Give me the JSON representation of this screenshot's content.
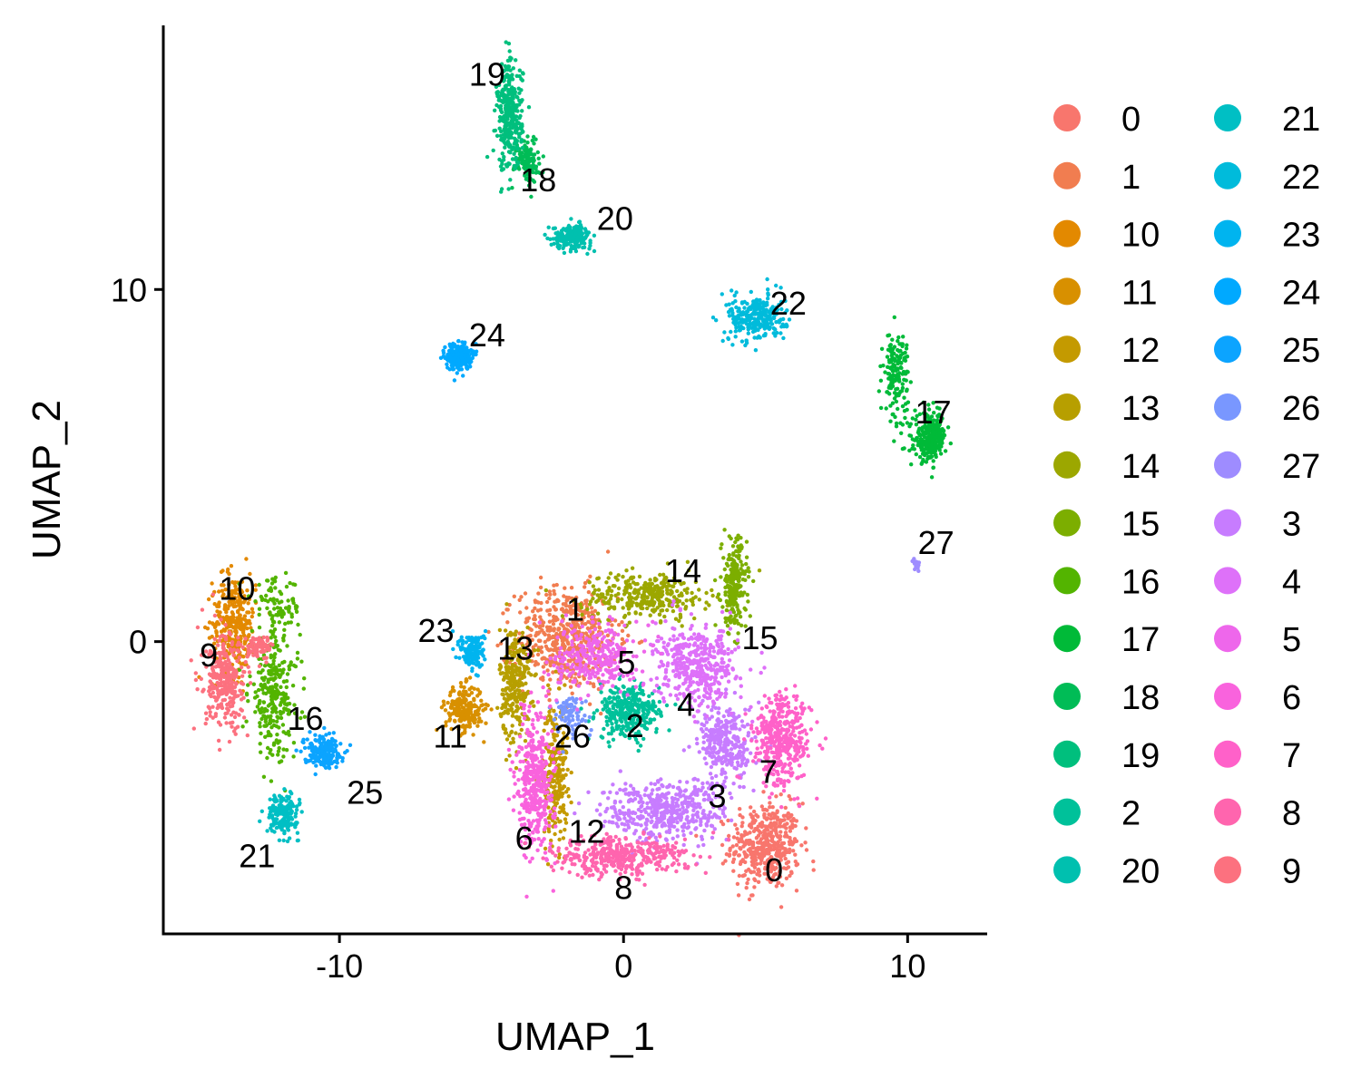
{
  "chart_data": {
    "type": "scatter",
    "xlabel": "UMAP_1",
    "ylabel": "UMAP_2",
    "xlim": [
      -16.2,
      12.8
    ],
    "ylim": [
      -8.3,
      17.5
    ],
    "x_ticks": [
      -10,
      0,
      10
    ],
    "y_ticks": [
      0,
      10
    ],
    "x_tick_labels": [
      "-10",
      "0",
      "10"
    ],
    "y_tick_labels": [
      "0",
      "10"
    ],
    "grid": false,
    "legend_position": "right",
    "legend_columns": 2,
    "clusters": [
      {
        "name": "0",
        "color": "#F8766D",
        "label_pos": [
          5.3,
          -6.5
        ],
        "blobs": [
          [
            5.0,
            -5.8,
            1.1,
            1.1,
            450
          ]
        ]
      },
      {
        "name": "1",
        "color": "#F17D50",
        "label_pos": [
          -1.7,
          0.9
        ],
        "blobs": [
          [
            -2.0,
            0.1,
            1.6,
            1.3,
            550
          ]
        ]
      },
      {
        "name": "10",
        "color": "#E38900",
        "label_pos": [
          -13.6,
          1.5
        ],
        "blobs": [
          [
            -13.7,
            0.5,
            0.7,
            1.3,
            320
          ]
        ]
      },
      {
        "name": "11",
        "color": "#D89000",
        "label_pos": [
          -6.1,
          -2.7
        ],
        "blobs": [
          [
            -5.6,
            -1.9,
            0.6,
            0.6,
            220
          ]
        ]
      },
      {
        "name": "12",
        "color": "#C49A00",
        "label_pos": [
          -1.3,
          -5.4
        ],
        "blobs": [
          [
            -2.4,
            -3.7,
            0.4,
            1.8,
            250
          ]
        ]
      },
      {
        "name": "13",
        "color": "#B79F00",
        "label_pos": [
          -3.8,
          -0.2
        ],
        "blobs": [
          [
            -3.8,
            -1.2,
            0.5,
            1.5,
            280
          ]
        ]
      },
      {
        "name": "14",
        "color": "#9CA700",
        "label_pos": [
          2.1,
          2.0
        ],
        "blobs": [
          [
            0.8,
            1.3,
            2.0,
            0.6,
            320
          ]
        ]
      },
      {
        "name": "15",
        "color": "#7CAE00",
        "label_pos": [
          4.8,
          0.1
        ],
        "blobs": [
          [
            3.9,
            1.6,
            0.4,
            1.2,
            220
          ]
        ]
      },
      {
        "name": "16",
        "color": "#53B400",
        "label_pos": [
          -11.2,
          -2.2
        ],
        "blobs": [
          [
            -12.3,
            -1.5,
            0.8,
            1.6,
            280
          ],
          [
            -12.2,
            1.0,
            0.8,
            0.7,
            80
          ]
        ]
      },
      {
        "name": "17",
        "color": "#00BA38",
        "label_pos": [
          10.9,
          6.5
        ],
        "blobs": [
          [
            10.8,
            5.8,
            0.5,
            0.6,
            280
          ],
          [
            9.6,
            7.6,
            0.4,
            1.1,
            160
          ]
        ]
      },
      {
        "name": "18",
        "color": "#00BC56",
        "label_pos": [
          -3.0,
          13.1
        ],
        "blobs": [
          [
            -3.4,
            13.7,
            0.4,
            0.6,
            120
          ]
        ]
      },
      {
        "name": "19",
        "color": "#00BF7D",
        "label_pos": [
          -4.8,
          16.1
        ],
        "blobs": [
          [
            -4.0,
            14.9,
            0.4,
            1.4,
            340
          ]
        ]
      },
      {
        "name": "2",
        "color": "#00C19A",
        "label_pos": [
          0.4,
          -2.4
        ],
        "blobs": [
          [
            0.2,
            -2.0,
            1.0,
            0.7,
            320
          ]
        ]
      },
      {
        "name": "20",
        "color": "#00C0AF",
        "label_pos": [
          -0.3,
          12.0
        ],
        "blobs": [
          [
            -1.8,
            11.5,
            0.6,
            0.3,
            200
          ]
        ]
      },
      {
        "name": "21",
        "color": "#00BFC4",
        "label_pos": [
          -12.9,
          -6.1
        ],
        "blobs": [
          [
            -12.0,
            -4.9,
            0.5,
            0.5,
            180
          ]
        ]
      },
      {
        "name": "22",
        "color": "#00BBDB",
        "label_pos": [
          5.8,
          9.6
        ],
        "blobs": [
          [
            4.7,
            9.2,
            0.9,
            0.6,
            280
          ]
        ]
      },
      {
        "name": "23",
        "color": "#00B4EF",
        "label_pos": [
          -6.6,
          0.3
        ],
        "blobs": [
          [
            -5.3,
            -0.3,
            0.4,
            0.5,
            140
          ]
        ]
      },
      {
        "name": "24",
        "color": "#00A9FF",
        "label_pos": [
          -4.8,
          8.7
        ],
        "blobs": [
          [
            -5.8,
            8.1,
            0.4,
            0.35,
            220
          ]
        ]
      },
      {
        "name": "25",
        "color": "#0CA4FF",
        "label_pos": [
          -9.1,
          -4.3
        ],
        "blobs": [
          [
            -10.6,
            -3.1,
            0.6,
            0.4,
            200
          ]
        ]
      },
      {
        "name": "26",
        "color": "#7997FF",
        "label_pos": [
          -1.8,
          -2.7
        ],
        "blobs": [
          [
            -1.9,
            -2.1,
            0.6,
            0.6,
            80
          ]
        ]
      },
      {
        "name": "27",
        "color": "#9E8CFF",
        "label_pos": [
          11.0,
          2.8
        ],
        "blobs": [
          [
            10.3,
            2.2,
            0.1,
            0.2,
            20
          ]
        ]
      },
      {
        "name": "3",
        "color": "#C77CFF",
        "label_pos": [
          3.3,
          -4.4
        ],
        "blobs": [
          [
            1.5,
            -4.8,
            2.0,
            0.8,
            450
          ],
          [
            3.6,
            -2.9,
            0.9,
            1.0,
            300
          ]
        ]
      },
      {
        "name": "4",
        "color": "#DE71F9",
        "label_pos": [
          2.2,
          -1.8
        ],
        "blobs": [
          [
            2.6,
            -0.7,
            1.3,
            1.0,
            420
          ]
        ]
      },
      {
        "name": "5",
        "color": "#EE67EB",
        "label_pos": [
          0.1,
          -0.6
        ],
        "blobs": [
          [
            -1.0,
            -0.4,
            1.3,
            0.9,
            300
          ]
        ]
      },
      {
        "name": "6",
        "color": "#F963DD",
        "label_pos": [
          -3.5,
          -5.6
        ],
        "blobs": [
          [
            -3.1,
            -4.0,
            0.6,
            1.8,
            400
          ]
        ]
      },
      {
        "name": "7",
        "color": "#FF61C9",
        "label_pos": [
          5.1,
          -3.7
        ],
        "blobs": [
          [
            5.6,
            -2.8,
            0.9,
            1.2,
            400
          ]
        ]
      },
      {
        "name": "8",
        "color": "#FF65AE",
        "label_pos": [
          0.0,
          -7.0
        ],
        "blobs": [
          [
            -0.2,
            -6.1,
            2.2,
            0.5,
            400
          ]
        ]
      },
      {
        "name": "9",
        "color": "#FC717F",
        "label_pos": [
          -14.6,
          -0.4
        ],
        "blobs": [
          [
            -14.0,
            -1.2,
            0.7,
            1.2,
            300
          ],
          [
            -12.8,
            -0.2,
            0.4,
            0.3,
            80
          ]
        ]
      }
    ]
  }
}
